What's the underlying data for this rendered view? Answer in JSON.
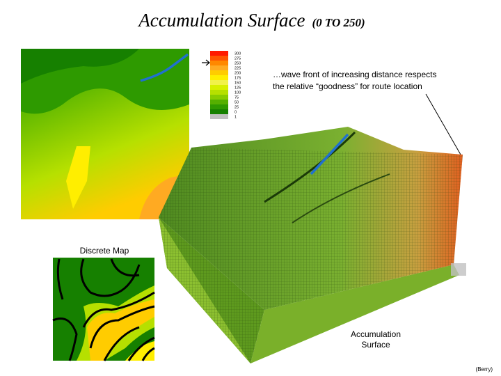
{
  "header": {
    "title": "Accumulation Surface",
    "subtitle": "(0 TO 250)"
  },
  "legend": [
    {
      "label": "300",
      "color": "#ff1a00"
    },
    {
      "label": "275",
      "color": "#ff5500"
    },
    {
      "label": "250",
      "color": "#ff8800"
    },
    {
      "label": "225",
      "color": "#ffaa22"
    },
    {
      "label": "200",
      "color": "#ffcc00"
    },
    {
      "label": "175",
      "color": "#ffee00"
    },
    {
      "label": "150",
      "color": "#f2f24a"
    },
    {
      "label": "125",
      "color": "#d8f000"
    },
    {
      "label": "100",
      "color": "#b6e000"
    },
    {
      "label": "75",
      "color": "#88cc00"
    },
    {
      "label": "50",
      "color": "#55b000"
    },
    {
      "label": "25",
      "color": "#2e9a00"
    },
    {
      "label": "0",
      "color": "#168000"
    },
    {
      "label": "1",
      "color": "#c0c0c0"
    }
  ],
  "annotation": {
    "line1": "…wave front of increasing distance respects",
    "line2": "the relative “goodness” for route location"
  },
  "discrete_map_label": "Discrete Map",
  "surface_label": {
    "line1": "Accumulation",
    "line2": "Surface"
  },
  "credit": "(Berry)"
}
